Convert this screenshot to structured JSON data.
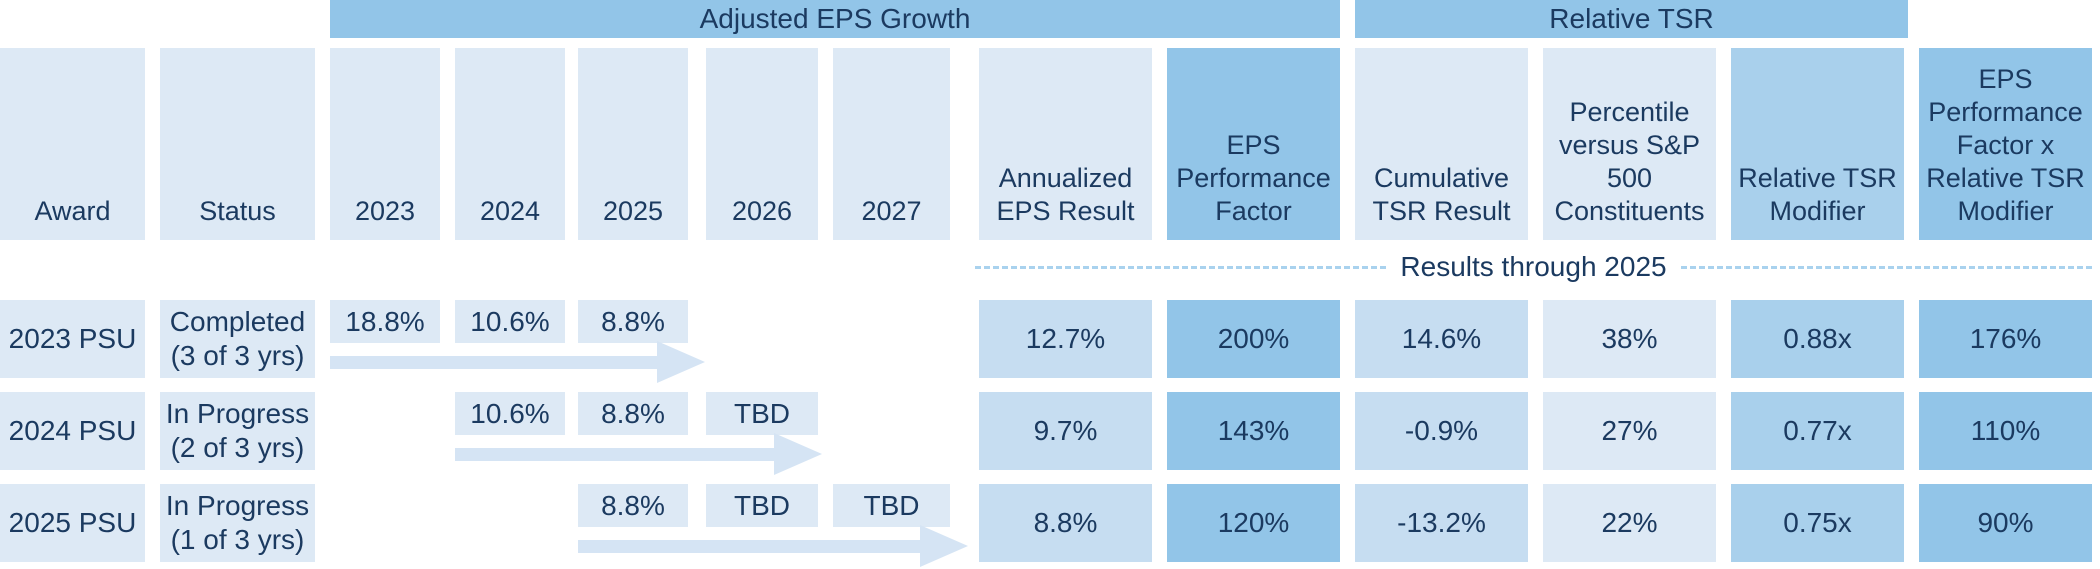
{
  "chart_data": {
    "type": "table",
    "column_groups": [
      {
        "label": "Adjusted EPS Growth",
        "columns": [
          "2023",
          "2024",
          "2025",
          "2026",
          "2027",
          "Annualized EPS Result",
          "EPS Performance Factor"
        ]
      },
      {
        "label": "Relative TSR",
        "columns": [
          "Cumulative TSR Result",
          "Percentile versus S&P 500 Constituents",
          "Relative TSR Modifier"
        ]
      }
    ],
    "columns": [
      "Award",
      "Status",
      "2023",
      "2024",
      "2025",
      "2026",
      "2027",
      "Annualized EPS Result",
      "EPS Performance Factor",
      "Cumulative TSR Result",
      "Percentile versus S&P 500 Constituents",
      "Relative TSR Modifier",
      "EPS Performance Factor x Relative TSR Modifier"
    ],
    "divider_label": "Results through 2025",
    "rows": [
      {
        "award": "2023 PSU",
        "status": "Completed\n(3 of 3 yrs)",
        "years": {
          "y2023": "18.8%",
          "y2024": "10.6%",
          "y2025": "8.8%",
          "y2026": "",
          "y2027": ""
        },
        "timeline_arrow": "2023 through 2025",
        "annualized_eps_result": "12.7%",
        "eps_performance_factor": "200%",
        "cumulative_tsr_result": "14.6%",
        "percentile_vs_sp500": "38%",
        "relative_tsr_modifier": "0.88x",
        "eps_pf_x_rtsr_modifier": "176%"
      },
      {
        "award": "2024 PSU",
        "status": "In Progress\n(2 of 3 yrs)",
        "years": {
          "y2023": "",
          "y2024": "10.6%",
          "y2025": "8.8%",
          "y2026": "TBD",
          "y2027": ""
        },
        "timeline_arrow": "2024 through 2026",
        "annualized_eps_result": "9.7%",
        "eps_performance_factor": "143%",
        "cumulative_tsr_result": "-0.9%",
        "percentile_vs_sp500": "27%",
        "relative_tsr_modifier": "0.77x",
        "eps_pf_x_rtsr_modifier": "110%"
      },
      {
        "award": "2025 PSU",
        "status": "In Progress\n(1 of 3 yrs)",
        "years": {
          "y2023": "",
          "y2024": "",
          "y2025": "8.8%",
          "y2026": "TBD",
          "y2027": "TBD"
        },
        "timeline_arrow": "2025 through 2027",
        "annualized_eps_result": "8.8%",
        "eps_performance_factor": "120%",
        "cumulative_tsr_result": "-13.2%",
        "percentile_vs_sp500": "22%",
        "relative_tsr_modifier": "0.75x",
        "eps_pf_x_rtsr_modifier": "90%"
      }
    ]
  },
  "colors": {
    "band_blue": "#92c5e8",
    "light_cell": "#dde9f5",
    "mid_cell": "#c6ddf1",
    "medium_cell": "#a9d0ec",
    "strong_cell": "#92c5e8",
    "arrow_blue": "#d5e4f4",
    "dash_blue": "#a9d2ee",
    "text_navy": "#1b3a60"
  }
}
